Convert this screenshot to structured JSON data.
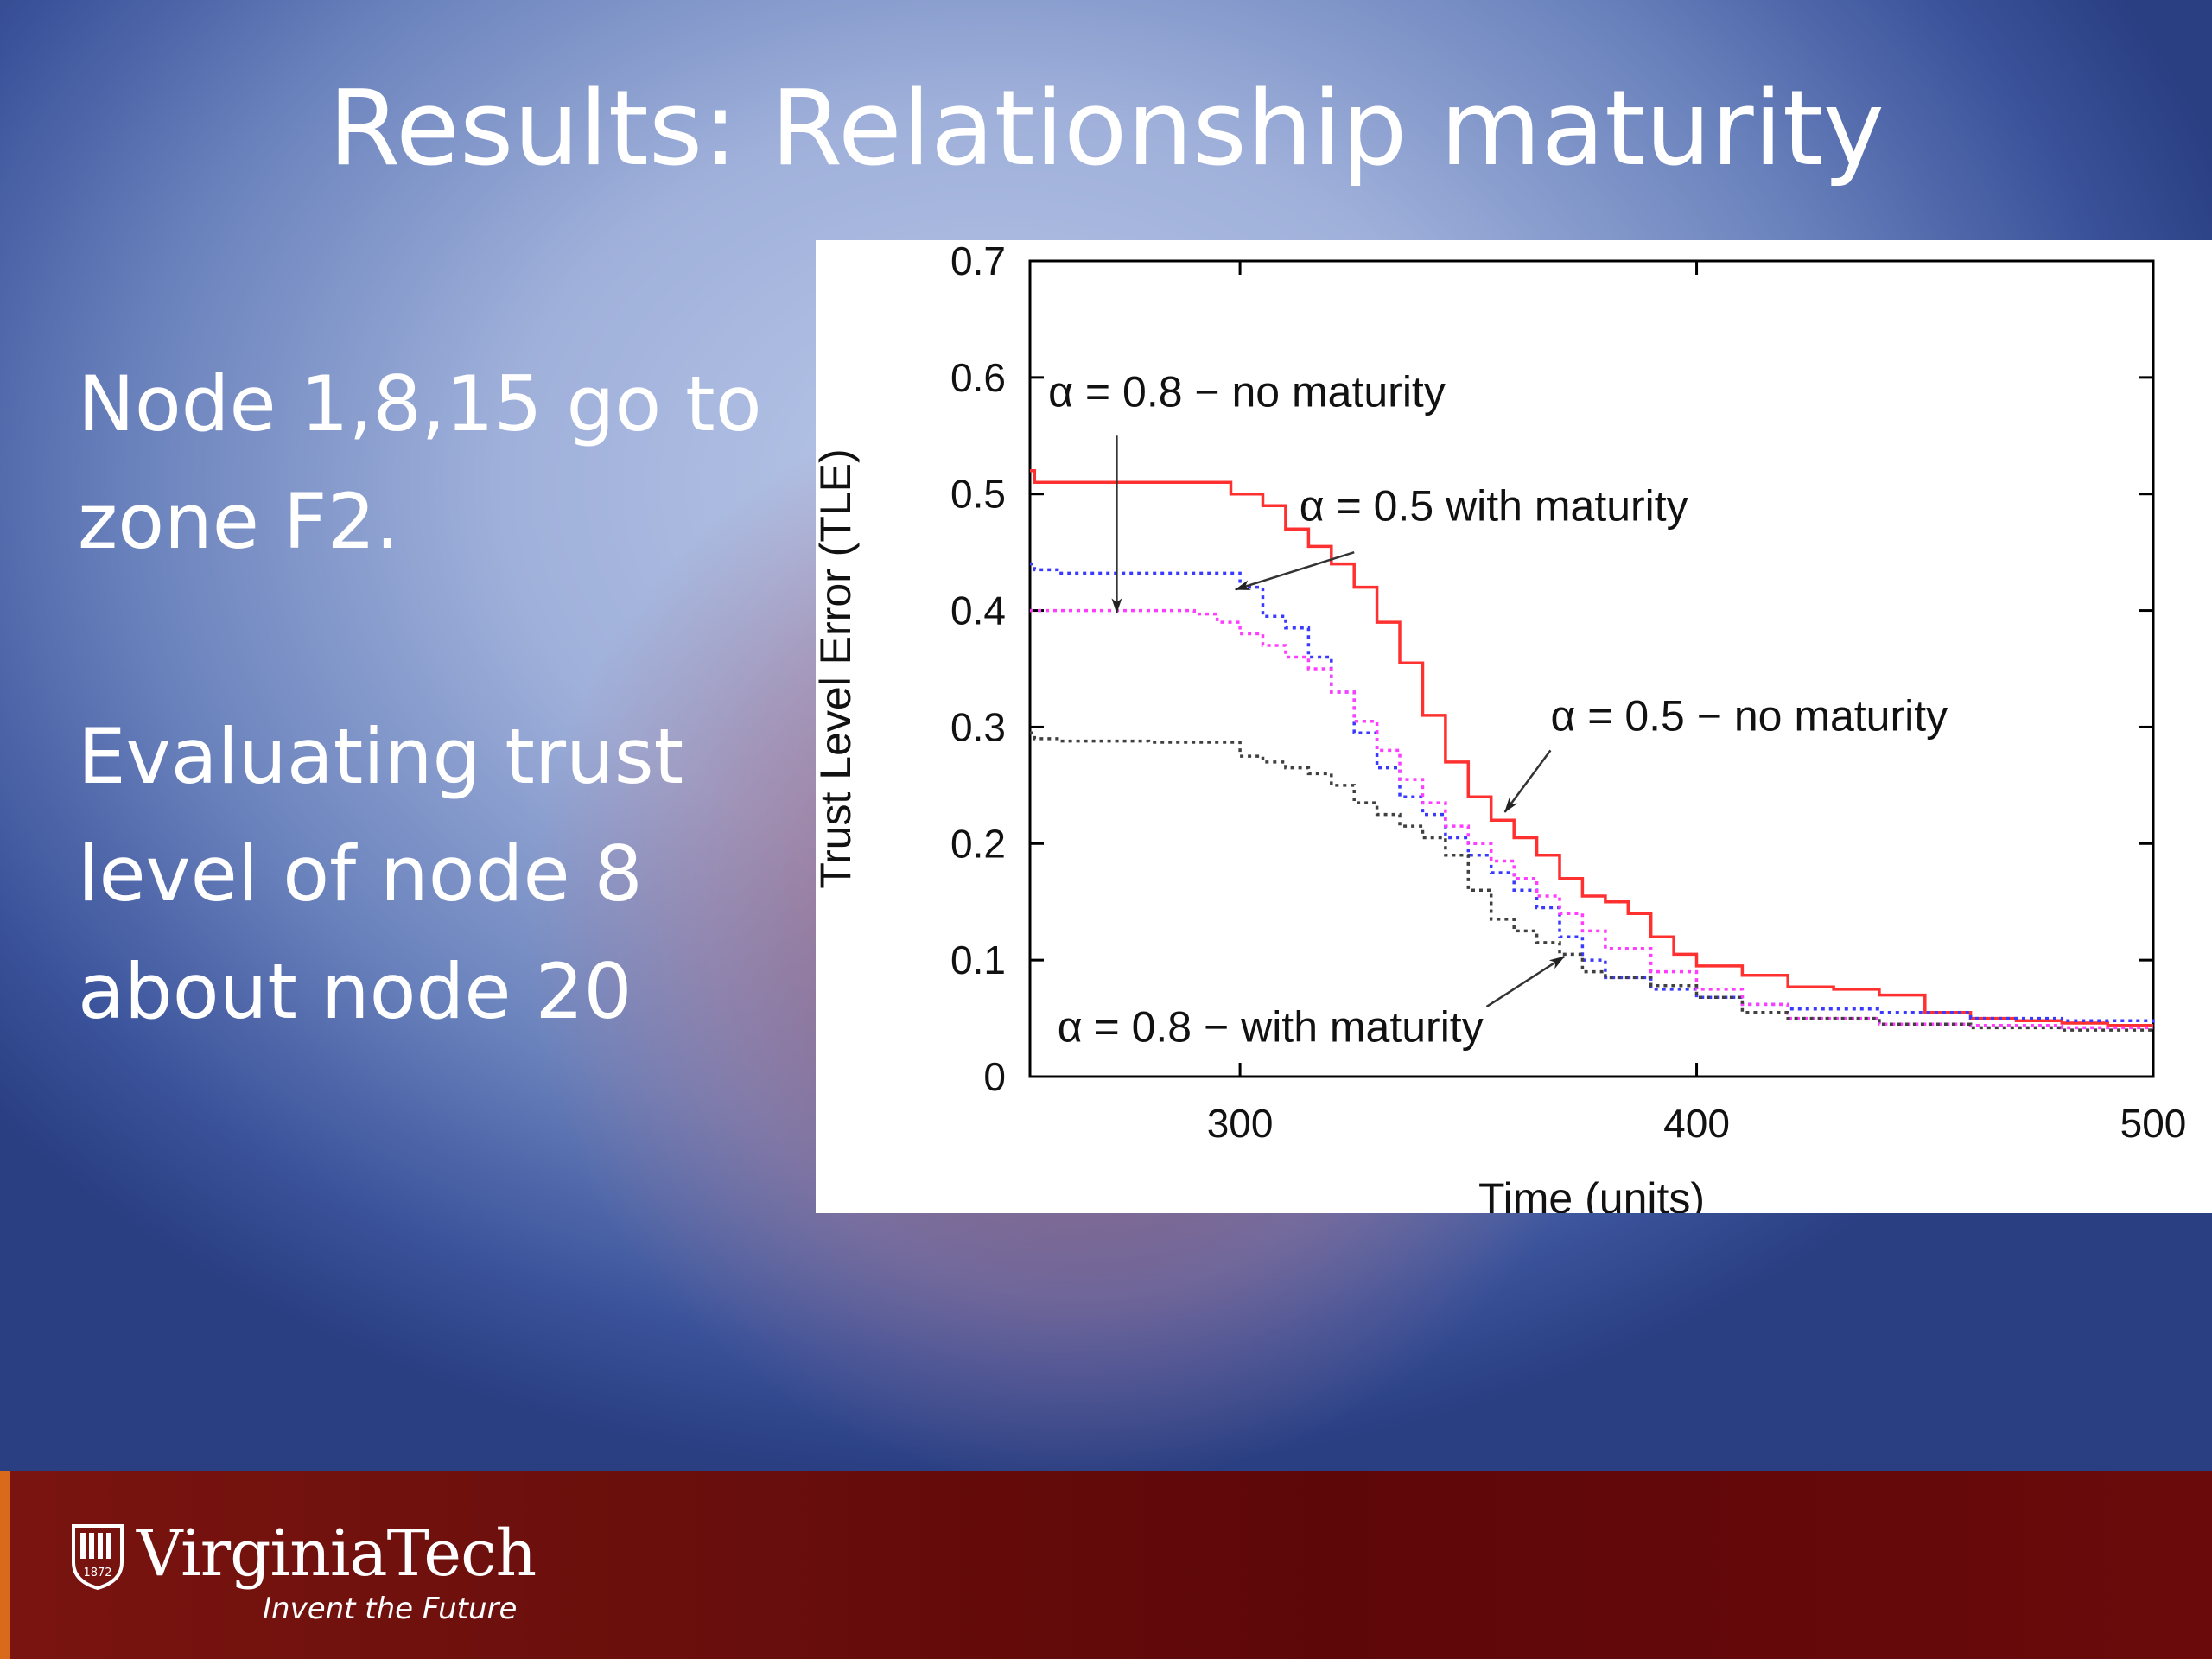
{
  "slide": {
    "title": "Results: Relationship maturity",
    "bullets": [
      {
        "lines": [
          "Node 1,8,15 go to",
          "zone F2."
        ]
      },
      {
        "lines": [
          "Evaluating trust",
          "level of node 8",
          "about node 20"
        ]
      }
    ]
  },
  "footer": {
    "brand": "VirginiaTech",
    "tagline": "Invent the Future",
    "shield_year": "1872",
    "accent_color": "#d96a1b",
    "background_color": "#650b0b"
  },
  "chart_data": {
    "type": "line",
    "title": "",
    "xlabel": "Time (units)",
    "ylabel": "Trust Level Error (TLE)",
    "xlim": [
      254,
      500
    ],
    "ylim": [
      0,
      0.7
    ],
    "xticks": [
      300,
      400,
      500
    ],
    "yticks": [
      0,
      0.1,
      0.2,
      0.3,
      0.4,
      0.5,
      0.6,
      0.7
    ],
    "xtick_labels": [
      "300",
      "400",
      "500"
    ],
    "ytick_labels": [
      "0",
      "0.1",
      "0.2",
      "0.3",
      "0.4",
      "0.5",
      "0.6",
      "0.7"
    ],
    "grid": false,
    "series": [
      {
        "color": "#ff3030",
        "style": "solid",
        "x": [
          254,
          255,
          256,
          260,
          280,
          294,
          298,
          305,
          310,
          315,
          320,
          325,
          330,
          335,
          340,
          345,
          350,
          355,
          360,
          365,
          370,
          375,
          380,
          385,
          390,
          395,
          400,
          410,
          420,
          430,
          440,
          450,
          460,
          470,
          480,
          490,
          500
        ],
        "y": [
          0.52,
          0.51,
          0.51,
          0.51,
          0.51,
          0.51,
          0.5,
          0.49,
          0.47,
          0.455,
          0.44,
          0.42,
          0.39,
          0.355,
          0.31,
          0.27,
          0.24,
          0.22,
          0.205,
          0.19,
          0.17,
          0.155,
          0.15,
          0.14,
          0.12,
          0.105,
          0.095,
          0.087,
          0.077,
          0.075,
          0.07,
          0.055,
          0.05,
          0.048,
          0.046,
          0.044,
          0.044
        ]
      },
      {
        "color": "#3a3aff",
        "style": "dotted",
        "x": [
          254,
          255,
          260,
          280,
          295,
          300,
          305,
          310,
          315,
          320,
          325,
          330,
          335,
          340,
          345,
          350,
          355,
          360,
          365,
          370,
          375,
          380,
          390,
          400,
          410,
          420,
          440,
          460,
          480,
          500
        ],
        "y": [
          0.44,
          0.435,
          0.432,
          0.432,
          0.432,
          0.42,
          0.395,
          0.385,
          0.36,
          0.33,
          0.295,
          0.265,
          0.24,
          0.225,
          0.205,
          0.19,
          0.175,
          0.16,
          0.145,
          0.12,
          0.1,
          0.085,
          0.075,
          0.068,
          0.062,
          0.058,
          0.055,
          0.05,
          0.048,
          0.046
        ]
      },
      {
        "color": "#ff3cff",
        "style": "dotted",
        "x": [
          254,
          255,
          260,
          280,
          290,
          295,
          300,
          305,
          310,
          315,
          320,
          325,
          330,
          335,
          340,
          345,
          350,
          355,
          360,
          365,
          370,
          375,
          380,
          390,
          400,
          410,
          420,
          440,
          460,
          480,
          500
        ],
        "y": [
          0.4,
          0.4,
          0.4,
          0.4,
          0.397,
          0.39,
          0.38,
          0.37,
          0.36,
          0.35,
          0.33,
          0.305,
          0.28,
          0.255,
          0.235,
          0.215,
          0.2,
          0.185,
          0.17,
          0.155,
          0.14,
          0.125,
          0.11,
          0.09,
          0.075,
          0.062,
          0.05,
          0.045,
          0.044,
          0.042,
          0.042
        ]
      },
      {
        "color": "#404040",
        "style": "dotted",
        "x": [
          254,
          255,
          260,
          280,
          294,
          300,
          305,
          310,
          315,
          320,
          325,
          330,
          335,
          340,
          345,
          350,
          355,
          360,
          365,
          370,
          375,
          380,
          390,
          400,
          410,
          420,
          440,
          460,
          480,
          500
        ],
        "y": [
          0.295,
          0.29,
          0.288,
          0.287,
          0.287,
          0.275,
          0.27,
          0.265,
          0.26,
          0.25,
          0.235,
          0.225,
          0.215,
          0.205,
          0.19,
          0.16,
          0.135,
          0.125,
          0.115,
          0.105,
          0.09,
          0.085,
          0.078,
          0.068,
          0.055,
          0.05,
          0.045,
          0.042,
          0.04,
          0.04
        ]
      }
    ],
    "annotations": [
      {
        "text": "α = 0.8 − no maturity",
        "at": [
          258,
          0.575
        ],
        "arrow_from": [
          273,
          0.55
        ],
        "arrow_to": [
          273,
          0.398
        ]
      },
      {
        "text": "α = 0.5 with maturity",
        "at": [
          313,
          0.477
        ],
        "arrow_from": [
          325,
          0.45
        ],
        "arrow_to": [
          299,
          0.418
        ]
      },
      {
        "text": "α = 0.5 − no maturity",
        "at": [
          368,
          0.297
        ],
        "arrow_from": [
          368,
          0.28
        ],
        "arrow_to": [
          358,
          0.227
        ]
      },
      {
        "text": "α = 0.8 − with maturity",
        "at": [
          260,
          0.03
        ],
        "arrow_from": [
          354,
          0.06
        ],
        "arrow_to": [
          371,
          0.103
        ]
      }
    ]
  }
}
